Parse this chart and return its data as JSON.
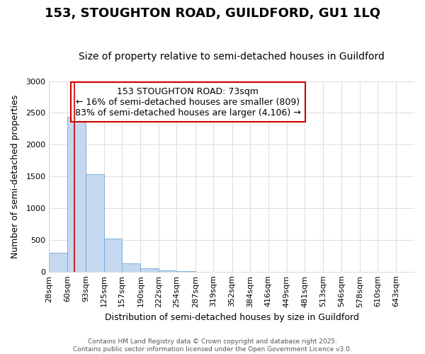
{
  "title": "153, STOUGHTON ROAD, GUILDFORD, GU1 1LQ",
  "subtitle": "Size of property relative to semi-detached houses in Guildford",
  "xlabel": "Distribution of semi-detached houses by size in Guildford",
  "ylabel": "Number of semi-detached properties",
  "annotation_title": "153 STOUGHTON ROAD: 73sqm",
  "annotation_line1": "← 16% of semi-detached houses are smaller (809)",
  "annotation_line2": "83% of semi-detached houses are larger (4,106) →",
  "bin_edges": [
    28,
    60,
    93,
    125,
    157,
    190,
    222,
    254,
    287,
    319,
    352,
    384,
    416,
    449,
    481,
    513,
    546,
    578,
    610,
    643,
    675
  ],
  "bar_heights": [
    300,
    2440,
    1540,
    520,
    130,
    50,
    20,
    5,
    0,
    0,
    0,
    0,
    0,
    0,
    0,
    0,
    0,
    0,
    0,
    0
  ],
  "bar_color": "#c5d8f0",
  "bar_edge_color": "#6baad8",
  "vline_color": "#cc0000",
  "vline_x": 73,
  "ylim_max": 3000,
  "yticks": [
    0,
    500,
    1000,
    1500,
    2000,
    2500,
    3000
  ],
  "background_color": "#ffffff",
  "plot_bg_color": "#ffffff",
  "grid_color": "#dddddd",
  "title_fontsize": 13,
  "subtitle_fontsize": 10,
  "axis_label_fontsize": 9,
  "tick_fontsize": 8,
  "annotation_fontsize": 9,
  "footer_text": "Contains HM Land Registry data © Crown copyright and database right 2025.\nContains public sector information licensed under the Open Government Licence v3.0."
}
